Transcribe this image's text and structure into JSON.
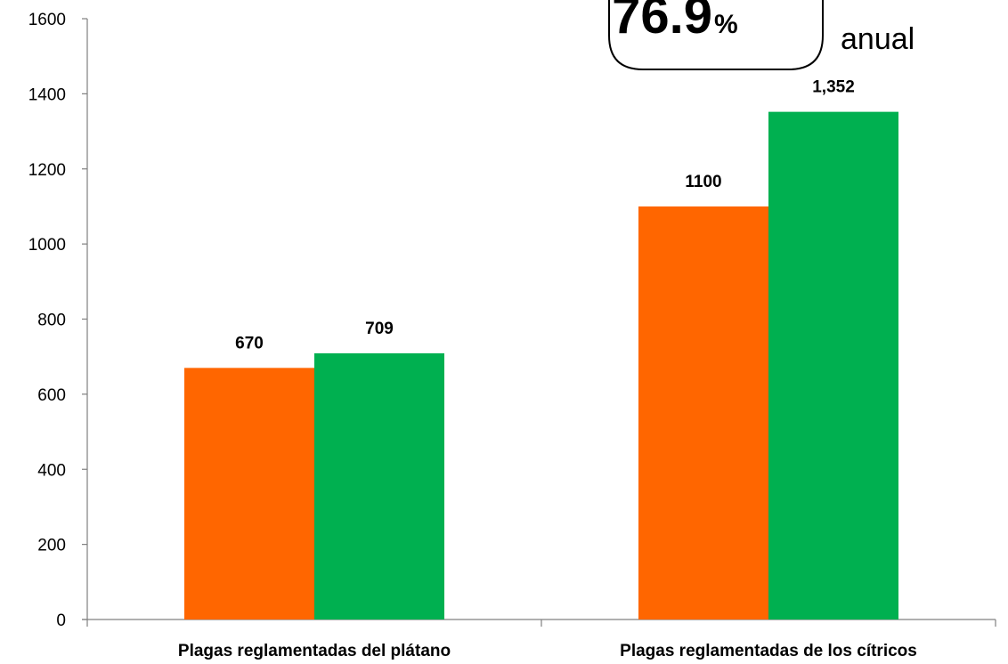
{
  "chart_data": {
    "type": "bar",
    "categories": [
      "Plagas reglamentadas del plátano",
      "Plagas reglamentadas de los cítricos"
    ],
    "series": [
      {
        "values": [
          670,
          1100
        ],
        "labels": [
          "670",
          "1100"
        ],
        "color": "#ff6600"
      },
      {
        "values": [
          709,
          1352
        ],
        "labels": [
          "709",
          "1,352"
        ],
        "color": "#00b050"
      }
    ],
    "yticks": [
      "0",
      "200",
      "400",
      "600",
      "800",
      "1000",
      "1200",
      "1400",
      "1600"
    ],
    "ylim": [
      0,
      1600
    ],
    "grid": false,
    "title": "",
    "xlabel": "",
    "ylabel": ""
  },
  "callout": {
    "value": "76.9",
    "unit": "%",
    "suffix": "anual"
  }
}
